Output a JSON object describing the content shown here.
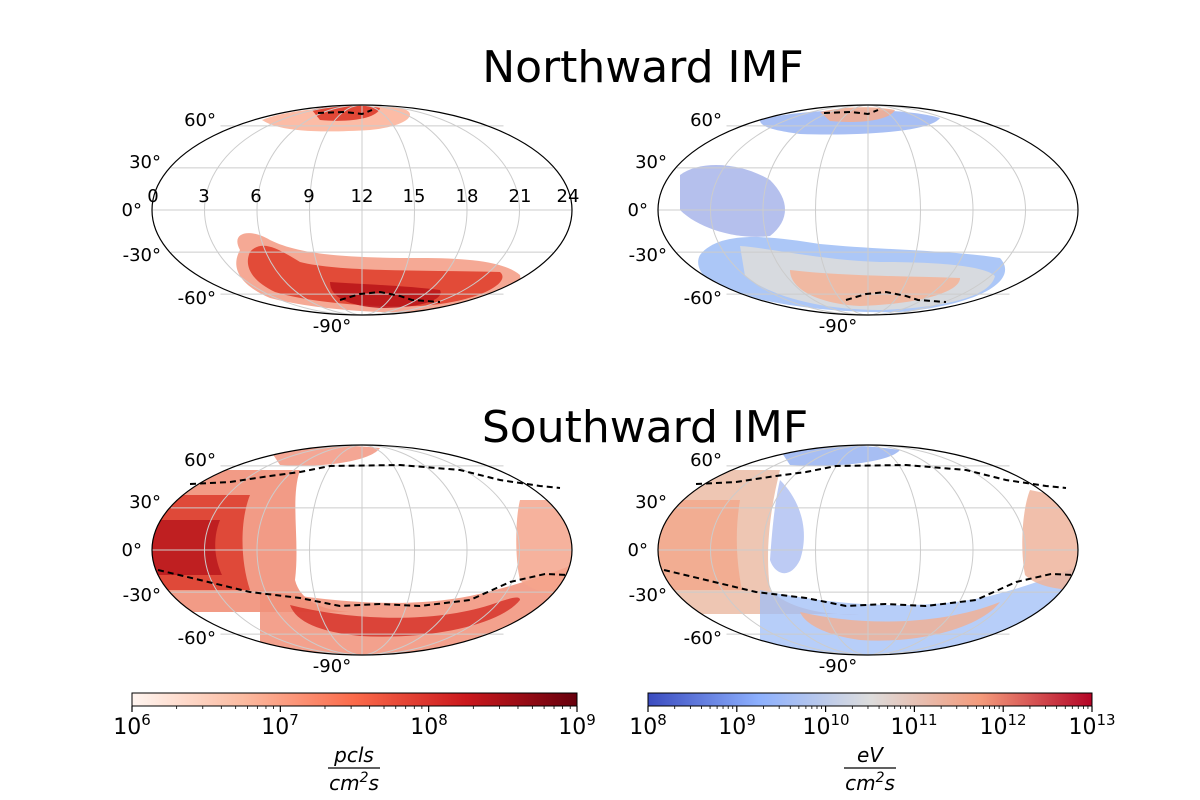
{
  "figure": {
    "section_titles": [
      "Northward IMF",
      "Southward IMF"
    ]
  },
  "chart_data": [
    {
      "type": "heatmap",
      "projection": "mollweide",
      "panel": "northward-particle-flux",
      "title": "Northward IMF",
      "colormap": "Reds",
      "log_scale": true,
      "grid": true,
      "lat_ticks": [
        "60°",
        "30°",
        "0°",
        "-30°",
        "-60°",
        "-90°"
      ],
      "lon_tick_labels": [
        "0",
        "3",
        "6",
        "9",
        "12",
        "15",
        "18",
        "21",
        "24"
      ],
      "boundary_line": {
        "style": "dashed",
        "color": "#000000"
      },
      "regions": [
        {
          "name": "",
          "lon_hours": [
            2.5,
            19
          ],
          "lat_deg": [
            -70,
            -20
          ],
          "intensity": "high"
        },
        {
          "name": "",
          "lon_hours": [
            10,
            16
          ],
          "lat_deg": [
            58,
            68
          ],
          "intensity": "high"
        }
      ]
    },
    {
      "type": "heatmap",
      "projection": "mollweide",
      "panel": "northward-energy-flux",
      "colormap": "coolwarm",
      "log_scale": true,
      "grid": true,
      "lat_ticks": [
        "60°",
        "30°",
        "0°",
        "-30°",
        "-60°",
        "-90°"
      ],
      "boundary_line": {
        "style": "dashed",
        "color": "#000000"
      }
    },
    {
      "type": "heatmap",
      "projection": "mollweide",
      "panel": "southward-particle-flux",
      "title": "Southward IMF",
      "colormap": "Reds",
      "log_scale": true,
      "grid": true,
      "lat_ticks": [
        "60°",
        "30°",
        "0°",
        "-30°",
        "-60°",
        "-90°"
      ],
      "boundary_line": {
        "style": "dashed",
        "color": "#000000"
      }
    },
    {
      "type": "heatmap",
      "projection": "mollweide",
      "panel": "southward-energy-flux",
      "colormap": "coolwarm",
      "log_scale": true,
      "grid": true,
      "lat_ticks": [
        "60°",
        "30°",
        "0°",
        "-30°",
        "-60°",
        "-90°"
      ],
      "boundary_line": {
        "style": "dashed",
        "color": "#000000"
      }
    }
  ],
  "colorbars": [
    {
      "id": "particle",
      "colormap": "Reds",
      "scale": "log",
      "range": [
        1000000,
        1000000000
      ],
      "tick_base": "10",
      "tick_exponents": [
        "6",
        "7",
        "8",
        "9"
      ],
      "label_numerator": "pcls",
      "label_denominator_base": "cm",
      "label_denominator_exp": "2",
      "label_denominator_tail": "s"
    },
    {
      "id": "energy",
      "colormap": "coolwarm",
      "scale": "log",
      "range": [
        100000000,
        10000000000000
      ],
      "tick_base": "10",
      "tick_exponents": [
        "8",
        "9",
        "10",
        "11",
        "12",
        "13"
      ],
      "label_numerator": "eV",
      "label_denominator_base": "cm",
      "label_denominator_exp": "2",
      "label_denominator_tail": "s"
    }
  ]
}
